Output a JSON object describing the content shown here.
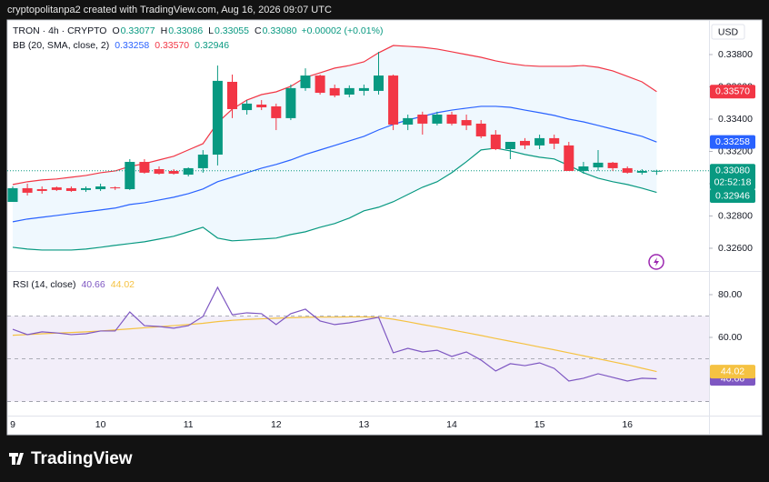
{
  "page": {
    "header": "cryptopolitanpa2 created with TradingView.com, Aug 16, 2026 09:07 UTC",
    "brand": "TradingView"
  },
  "chart_data": [
    {
      "type": "candlestick",
      "title": "TRON · 4h · CRYPTO",
      "ohlc": [
        {
          "key": "O",
          "label": "0.33077"
        },
        {
          "key": "H",
          "label": "0.33086"
        },
        {
          "key": "L",
          "label": "0.33055"
        },
        {
          "key": "C",
          "label": "0.33080"
        }
      ],
      "change": "+0.00002 (+0.01%)",
      "axis_unit": "USD",
      "categories": [
        "9",
        null,
        null,
        null,
        null,
        null,
        "10",
        null,
        null,
        null,
        null,
        null,
        "11",
        null,
        null,
        null,
        null,
        null,
        "12",
        null,
        null,
        null,
        null,
        null,
        "13",
        null,
        null,
        null,
        null,
        null,
        "14",
        null,
        null,
        null,
        null,
        null,
        "15",
        null,
        null,
        null,
        null,
        null,
        "16",
        null,
        null
      ],
      "open": [
        0.32887,
        0.32972,
        0.32966,
        0.32977,
        0.32972,
        0.32961,
        0.32966,
        0.32977,
        0.32966,
        0.33135,
        0.3309,
        0.33079,
        0.33056,
        0.33096,
        0.3318,
        0.33631,
        0.33456,
        0.3349,
        0.33479,
        0.33406,
        0.33592,
        0.3367,
        0.33592,
        0.33552,
        0.33575,
        0.33575,
        0.3367,
        0.33366,
        0.33428,
        0.33372,
        0.33428,
        0.33394,
        0.33372,
        0.33304,
        0.33214,
        0.33265,
        0.33237,
        0.33282,
        0.33237,
        0.33079,
        0.33101,
        0.3313,
        0.33096,
        0.33068,
        0.33077
      ],
      "high": [
        0.32983,
        0.33,
        0.32983,
        0.32983,
        0.32983,
        0.32983,
        0.33,
        0.32983,
        0.33152,
        0.33152,
        0.33107,
        0.3309,
        0.33101,
        0.33208,
        0.33732,
        0.33676,
        0.33518,
        0.33518,
        0.33496,
        0.33614,
        0.33715,
        0.33676,
        0.33614,
        0.33609,
        0.33614,
        0.33817,
        0.33676,
        0.33428,
        0.33446,
        0.33446,
        0.33446,
        0.33428,
        0.33394,
        0.33332,
        0.33259,
        0.33282,
        0.33304,
        0.33304,
        0.33259,
        0.33135,
        0.33208,
        0.33135,
        0.33107,
        0.3309,
        0.33086
      ],
      "low": [
        0.32887,
        0.32927,
        0.32938,
        0.32955,
        0.32949,
        0.32949,
        0.32955,
        0.32961,
        0.32961,
        0.33062,
        0.33056,
        0.33056,
        0.33045,
        0.33068,
        0.33113,
        0.33406,
        0.33428,
        0.33456,
        0.33332,
        0.33394,
        0.33575,
        0.33552,
        0.33535,
        0.33535,
        0.33546,
        0.33552,
        0.33332,
        0.33332,
        0.33304,
        0.33361,
        0.33361,
        0.33332,
        0.33282,
        0.33208,
        0.33152,
        0.33214,
        0.33214,
        0.33214,
        0.33079,
        0.33062,
        0.33079,
        0.33079,
        0.33062,
        0.33056,
        0.33055
      ],
      "close": [
        0.32972,
        0.32944,
        0.32955,
        0.32961,
        0.32955,
        0.32972,
        0.32983,
        0.32972,
        0.33135,
        0.33068,
        0.33062,
        0.33062,
        0.33096,
        0.3318,
        0.33637,
        0.33462,
        0.33496,
        0.33473,
        0.33406,
        0.33592,
        0.3367,
        0.33563,
        0.33546,
        0.33592,
        0.33592,
        0.3367,
        0.33366,
        0.33406,
        0.33372,
        0.33428,
        0.33372,
        0.33361,
        0.33293,
        0.33214,
        0.33259,
        0.33237,
        0.33282,
        0.33248,
        0.33079,
        0.33107,
        0.3313,
        0.33096,
        0.33068,
        0.33079,
        0.3308
      ],
      "close_label": "0.33080",
      "countdown": "02:52:18",
      "up_color": "#089981",
      "down_color": "#f23645",
      "ylim": [
        0.32459,
        0.34014
      ],
      "yticks": [
        {
          "value": 0.326,
          "label": "0.32600"
        },
        {
          "value": 0.328,
          "label": "0.32800"
        },
        {
          "value": 0.33,
          "label": "0.33000"
        },
        {
          "value": 0.332,
          "label": "0.33200"
        },
        {
          "value": 0.334,
          "label": "0.33400"
        },
        {
          "value": 0.336,
          "label": "0.33600"
        },
        {
          "value": 0.338,
          "label": "0.33800"
        }
      ],
      "grid": false,
      "indicator": {
        "title": "BB (20, SMA, close, 2)",
        "fill": "rgba(33,150,243,0.07)",
        "series": [
          {
            "color": "#2962ff",
            "last_label": "0.33258",
            "values": [
              0.32764,
              0.32781,
              0.32792,
              0.32803,
              0.32815,
              0.32826,
              0.32837,
              0.32849,
              0.32871,
              0.32882,
              0.32899,
              0.32916,
              0.32938,
              0.32967,
              0.33012,
              0.3304,
              0.33068,
              0.33096,
              0.33119,
              0.33147,
              0.33181,
              0.33209,
              0.33237,
              0.33265,
              0.33293,
              0.33333,
              0.33367,
              0.33395,
              0.33417,
              0.3344,
              0.33456,
              0.33468,
              0.33479,
              0.33479,
              0.33473,
              0.33456,
              0.3344,
              0.33423,
              0.334,
              0.33383,
              0.33361,
              0.33338,
              0.33316,
              0.33293,
              0.33258
            ]
          },
          {
            "color": "#f23645",
            "last_label": "0.33570",
            "values": [
              0.32995,
              0.33012,
              0.33023,
              0.33029,
              0.3304,
              0.33051,
              0.33068,
              0.33079,
              0.33107,
              0.33124,
              0.33147,
              0.3317,
              0.33209,
              0.33248,
              0.33378,
              0.33462,
              0.33518,
              0.33552,
              0.33569,
              0.33603,
              0.33659,
              0.33687,
              0.33716,
              0.33732,
              0.33755,
              0.33811,
              0.33856,
              0.33851,
              0.33845,
              0.33834,
              0.33817,
              0.338,
              0.33783,
              0.33761,
              0.33744,
              0.33732,
              0.33727,
              0.33727,
              0.33727,
              0.33732,
              0.33721,
              0.33699,
              0.33665,
              0.33631,
              0.3357
            ]
          },
          {
            "color": "#089981",
            "last_label": "0.32946",
            "values": [
              0.32606,
              0.32595,
              0.32589,
              0.32589,
              0.32589,
              0.32595,
              0.32606,
              0.32618,
              0.32629,
              0.3264,
              0.32657,
              0.32674,
              0.32702,
              0.3273,
              0.32663,
              0.32646,
              0.32651,
              0.32657,
              0.32663,
              0.32685,
              0.32702,
              0.3273,
              0.32753,
              0.32787,
              0.32832,
              0.32854,
              0.32888,
              0.32933,
              0.32978,
              0.33012,
              0.33068,
              0.33136,
              0.33209,
              0.3322,
              0.33203,
              0.33181,
              0.33164,
              0.33153,
              0.33113,
              0.33068,
              0.33034,
              0.33012,
              0.32995,
              0.32972,
              0.32946
            ]
          }
        ]
      }
    },
    {
      "type": "line",
      "title": "RSI (14, close)",
      "series": [
        {
          "color": "#7e57c2",
          "values": [
            63.8,
            61.3,
            62.6,
            62.1,
            61.3,
            61.7,
            63.0,
            63.0,
            71.9,
            65.5,
            65.1,
            64.3,
            65.5,
            69.8,
            83.4,
            70.6,
            71.5,
            71.1,
            66.0,
            71.1,
            73.2,
            67.7,
            66.0,
            66.8,
            68.1,
            69.4,
            52.8,
            54.9,
            53.2,
            54.0,
            51.1,
            53.2,
            49.4,
            44.3,
            47.7,
            46.8,
            48.1,
            45.5,
            39.6,
            40.9,
            43.0,
            41.3,
            39.6,
            40.9,
            40.66
          ]
        },
        {
          "color": "#f5c242",
          "values": [
            61.0,
            61.3,
            61.7,
            62.0,
            62.3,
            62.6,
            63.0,
            63.5,
            64.0,
            64.5,
            65.0,
            65.5,
            66.0,
            66.6,
            67.4,
            68.0,
            68.4,
            68.7,
            69.0,
            69.2,
            69.4,
            69.5,
            69.5,
            69.6,
            69.6,
            69.4,
            68.5,
            67.3,
            66.0,
            64.8,
            63.5,
            62.2,
            60.9,
            59.5,
            58.2,
            56.9,
            55.5,
            54.2,
            52.8,
            51.4,
            50.0,
            48.6,
            47.2,
            45.6,
            44.02
          ]
        }
      ],
      "ylim": [
        23,
        90.2
      ],
      "yticks": [
        {
          "value": 60,
          "label": "60.00"
        },
        {
          "value": 80,
          "label": "80.00"
        }
      ],
      "bands": [
        30,
        50,
        70
      ],
      "band_fill": "rgba(126,87,194,0.1)",
      "grid": false
    }
  ]
}
